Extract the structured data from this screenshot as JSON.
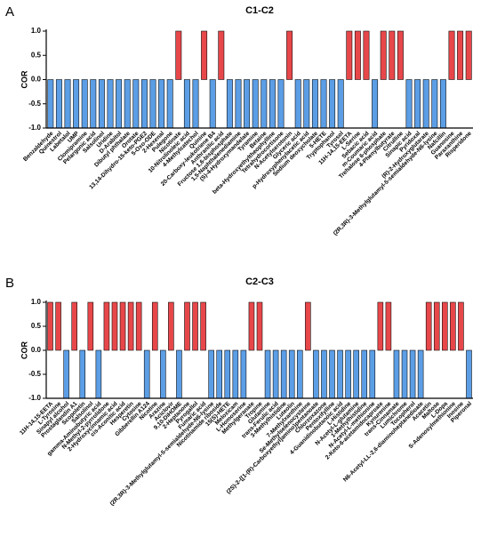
{
  "chart_data": [
    {
      "type": "bar",
      "panel": "A",
      "title": "C1-C2",
      "ylabel": "COR",
      "categories": [
        "Benzaldehyde",
        "Quinestrol",
        "Labetalol",
        "UMP",
        "Clomipramine",
        "Pelargonic acid",
        "Salsolinol",
        "Uridine",
        "D-Arabitol",
        "Dibutyl phthalate",
        "Orotate",
        "13,14-Dihydro-15-keto-PGE2",
        "5-Oxo-ODE",
        "2-Hexenal",
        "Pulegone",
        "Nicotinate",
        "10-Nitrolinoleic acid",
        "4-Methylcatechol",
        "Quinine",
        "20-Carboxy-leukotriene B4",
        "Anthranilic acid",
        "Fructose 1,6-bisphosphate",
        "1,5-Naphthalenediamine",
        "(S)-4-Hydroxymandelate",
        "Tyramine",
        "Betaine",
        "beta-Hydroxyethyltheophylline",
        "Tetrahydrocortisone",
        "N-Acetylserotonin",
        "Glyceric acid",
        "p-Hydroxyphenylacetic acid",
        "Sodium deoxycholate",
        "5-HETE",
        "Tryptophanol",
        "Tyrosol",
        "11H-14,15-EETA",
        "L-Serine",
        "Sebacic acid",
        "m-Coumaric acid",
        "Trehalose 6-phosphate",
        "4-Phenylbutyrate",
        "Citrulline",
        "Sinapic acid",
        "Pyridoxal",
        "(R)-2-Hydroxyglutarate",
        "(2R,3R)-3-Methylglutamyl-5-semialdehyde-N6-lysine",
        "Nafcillin",
        "Guanosine",
        "Paraxanthine",
        "Risperidone"
      ],
      "values": [
        -1,
        -1,
        -1,
        -1,
        -1,
        -1,
        -1,
        -1,
        -1,
        -1,
        -1,
        -1,
        -1,
        -1,
        -1,
        1,
        -1,
        -1,
        1,
        -1,
        1,
        -1,
        -1,
        -1,
        -1,
        -1,
        -1,
        -1,
        1,
        -1,
        -1,
        -1,
        -1,
        -1,
        -1,
        1,
        1,
        1,
        -1,
        1,
        1,
        1,
        -1,
        -1,
        -1,
        -1,
        -1,
        1,
        1,
        1
      ],
      "color_positive": "#e8474a",
      "color_negative": "#5b9ee6",
      "ylim": [
        -1,
        1
      ],
      "yticks": [
        {
          "value": -1,
          "label": "-1.0"
        },
        -0.5,
        {
          "value": 0,
          "label": "0.0"
        },
        0.5,
        {
          "value": 1,
          "label": "1.0"
        }
      ]
    },
    {
      "type": "bar",
      "panel": "B",
      "title": "C2-C3",
      "ylabel": "COR",
      "categories": [
        "11H-14,15-EETA",
        "L-Tyrosine",
        "Sinapyl alcohol",
        "Prostaglandin A1",
        "Scopoletin",
        "Salsolinol",
        "gamma-Aminobutyric acid",
        "N-Methyl-2-pyrrolidone",
        "2-Hydroxycinnamic acid",
        "cis-Aconitic acid",
        "Hesperetin",
        "Cytosine",
        "Gibberellin A124",
        "Nicotine",
        "Arazine",
        "Aciclovir",
        "9,10-DiHOME",
        "2-Heptanone",
        "Pyrogallol",
        "Fumaric acid",
        "(2R,3R)-3-Methylglutamyl-5-semialdehyde-N6-lysine",
        "Nicotinamide riboside",
        "15(S)-HETE",
        "Meloxicam",
        "L-Homoserine",
        "Methylgeranate",
        "Tropine",
        "Glutamine",
        "trans-Ferulic acid",
        "3-Methylhistidine",
        "Luteolin",
        "7-Methylxanthine",
        "Se-Methylselenocysteine",
        "(2S)-2-{[1-(R)-Carboxyethyl]amino}pentanoate",
        "Chlorzoxazone",
        "Pentoxifylline",
        "4-Guanidinobutanoic acid",
        "L-Histidine",
        "N-Acetyl-L-glutamine",
        "1-Methylhistidine",
        "N-Acetyl-L-methionine",
        "2-Keto-6-acetamidocaproate",
        "Kynurenine",
        "trans-Cinnamate",
        "Lumichrome",
        "Tocopherol",
        "N6-Acetyl-LL-2,6-diaminoheptanedioate",
        "Acacetin",
        "Maltose",
        "L-Dopa",
        "S-Adenosylmethionine",
        "Inosine",
        "Piperonal"
      ],
      "values": [
        1,
        1,
        -1,
        1,
        -1,
        1,
        -1,
        1,
        1,
        1,
        1,
        1,
        -1,
        1,
        -1,
        1,
        -1,
        1,
        1,
        1,
        -1,
        -1,
        -1,
        -1,
        -1,
        1,
        1,
        -1,
        -1,
        -1,
        -1,
        -1,
        1,
        -1,
        -1,
        -1,
        -1,
        -1,
        -1,
        -1,
        -1,
        1,
        1,
        -1,
        -1,
        -1,
        -1,
        1,
        1,
        1,
        1,
        1,
        -1
      ],
      "color_positive": "#e8474a",
      "color_negative": "#5b9ee6",
      "ylim": [
        -1,
        1
      ],
      "yticks": [
        {
          "value": -1,
          "label": "-1.0"
        },
        -0.5,
        {
          "value": 0,
          "label": "0.0"
        },
        0.5,
        {
          "value": 1,
          "label": "1.0"
        }
      ]
    }
  ]
}
